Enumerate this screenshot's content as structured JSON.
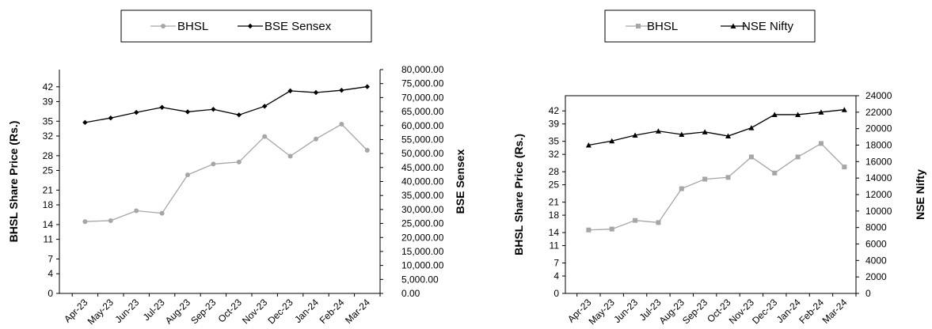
{
  "chart_data": [
    {
      "type": "line",
      "title": "",
      "legend_position": "top",
      "legend_boxed": true,
      "grid": false,
      "categories": [
        "Apr-23",
        "May-23",
        "Jun-23",
        "Jul-23",
        "Aug-23",
        "Sep-23",
        "Oct-23",
        "Nov-23",
        "Dec-23",
        "Jan-24",
        "Feb-24",
        "Mar-24"
      ],
      "ylabel": "BHSL Share Price (Rs.)",
      "y2label": "BSE Sensex",
      "ylim": [
        0,
        45.5
      ],
      "y_ticks": [
        "0",
        "4",
        "7",
        "11",
        "14",
        "18",
        "21",
        "25",
        "28",
        "32",
        "35",
        "39",
        "42"
      ],
      "y2lim": [
        0,
        80000
      ],
      "y2_ticks": [
        "0.00",
        "5,000.00",
        "10,000.00",
        "15,000.00",
        "20,000.00",
        "25,000.00",
        "30,000.00",
        "35,000.00",
        "40,000.00",
        "45,000.00",
        "50,000.00",
        "55,000.00",
        "60,000.00",
        "65,000.00",
        "70,000.00",
        "75,000.00",
        "80,000.00"
      ],
      "series": [
        {
          "name": "BHSL",
          "axis": "left",
          "color": "#a6a6a6",
          "marker": "circle",
          "values": [
            14.6,
            14.8,
            16.8,
            16.3,
            24.1,
            26.3,
            26.7,
            31.9,
            27.9,
            31.4,
            34.4,
            29.1
          ]
        },
        {
          "name": "BSE Sensex",
          "axis": "right",
          "color": "#000000",
          "marker": "diamond",
          "values": [
            61100,
            62700,
            64700,
            66500,
            64900,
            65800,
            63800,
            66900,
            72400,
            71800,
            72600,
            73900
          ]
        }
      ]
    },
    {
      "type": "line",
      "title": "",
      "legend_position": "top",
      "legend_boxed": true,
      "grid": false,
      "categories": [
        "Apr-23",
        "May-23",
        "Jun-23",
        "Jul-23",
        "Aug-23",
        "Sep-23",
        "Oct-23",
        "Nov-23",
        "Dec-23",
        "Jan-24",
        "Feb-24",
        "Mar-24"
      ],
      "ylabel": "BHSL Share Price (Rs.)",
      "y2label": "NSE Nifty",
      "ylim": [
        0,
        45.5
      ],
      "y_ticks": [
        "0",
        "4",
        "7",
        "11",
        "14",
        "18",
        "21",
        "25",
        "28",
        "32",
        "35",
        "39",
        "42"
      ],
      "y2lim": [
        0,
        24000
      ],
      "y2_ticks": [
        "0",
        "2000",
        "4000",
        "6000",
        "8000",
        "10000",
        "12000",
        "14000",
        "16000",
        "18000",
        "20000",
        "22000",
        "24000"
      ],
      "series": [
        {
          "name": "BHSL",
          "axis": "left",
          "color": "#a6a6a6",
          "marker": "square",
          "values": [
            14.6,
            14.8,
            16.8,
            16.3,
            24.1,
            26.3,
            26.7,
            31.4,
            27.7,
            31.4,
            34.5,
            29.1
          ]
        },
        {
          "name": "NSE Nifty",
          "axis": "right",
          "color": "#000000",
          "marker": "triangle",
          "values": [
            18000,
            18500,
            19200,
            19700,
            19300,
            19600,
            19100,
            20100,
            21700,
            21700,
            22000,
            22300
          ]
        }
      ]
    }
  ]
}
